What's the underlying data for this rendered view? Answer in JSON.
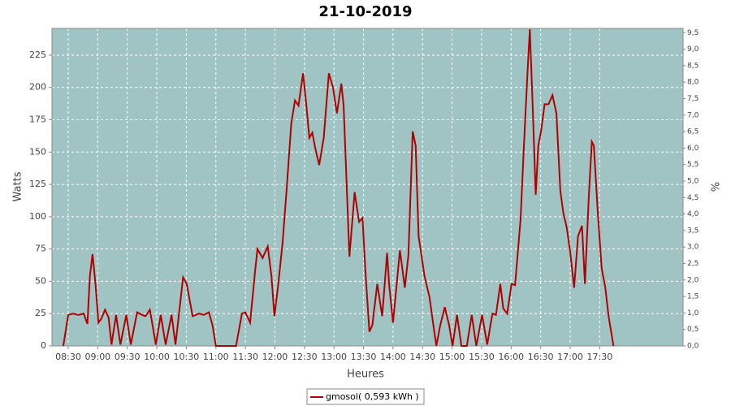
{
  "chart_data": {
    "type": "line",
    "title": "21-10-2019",
    "x_label": "Heures",
    "y_label": "Watts",
    "y2_label": "%",
    "grid": true,
    "legend": "bottom",
    "xlim": [
      493.5,
      1134.7
    ],
    "xticks": [
      {
        "value": 510,
        "label": "08:30"
      },
      {
        "value": 540,
        "label": "09:00"
      },
      {
        "value": 570,
        "label": "09:30"
      },
      {
        "value": 600,
        "label": "10:00"
      },
      {
        "value": 630,
        "label": "10:30"
      },
      {
        "value": 660,
        "label": "11:00"
      },
      {
        "value": 690,
        "label": "11:30"
      },
      {
        "value": 720,
        "label": "12:00"
      },
      {
        "value": 750,
        "label": "12:30"
      },
      {
        "value": 780,
        "label": "13:00"
      },
      {
        "value": 810,
        "label": "13:30"
      },
      {
        "value": 840,
        "label": "14:00"
      },
      {
        "value": 870,
        "label": "14:30"
      },
      {
        "value": 900,
        "label": "15:00"
      },
      {
        "value": 930,
        "label": "15:30"
      },
      {
        "value": 960,
        "label": "16:00"
      },
      {
        "value": 990,
        "label": "16:30"
      },
      {
        "value": 1020,
        "label": "17:00"
      },
      {
        "value": 1050,
        "label": "17:30"
      }
    ],
    "ylim": [
      0,
      245.7
    ],
    "yticks": [
      0,
      25,
      50,
      75,
      100,
      125,
      150,
      175,
      200,
      225
    ],
    "y2lim": [
      0,
      9.63
    ],
    "y2ticks": [
      {
        "value": 0,
        "label": "0,0"
      },
      {
        "value": 0.5,
        "label": "0,5"
      },
      {
        "value": 1,
        "label": "1,0"
      },
      {
        "value": 1.5,
        "label": "1,5"
      },
      {
        "value": 2,
        "label": "2,0"
      },
      {
        "value": 2.5,
        "label": "2,5"
      },
      {
        "value": 3,
        "label": "3,0"
      },
      {
        "value": 3.5,
        "label": "3,5"
      },
      {
        "value": 4,
        "label": "4,0"
      },
      {
        "value": 4.5,
        "label": "4,5"
      },
      {
        "value": 5,
        "label": "5,0"
      },
      {
        "value": 5.5,
        "label": "5,5"
      },
      {
        "value": 6,
        "label": "6,0"
      },
      {
        "value": 6.5,
        "label": "6,5"
      },
      {
        "value": 7,
        "label": "7,0"
      },
      {
        "value": 7.5,
        "label": "7,5"
      },
      {
        "value": 8,
        "label": "8,0"
      },
      {
        "value": 8.5,
        "label": "8,5"
      },
      {
        "value": 9,
        "label": "9,0"
      },
      {
        "value": 9.5,
        "label": "9,5"
      }
    ],
    "x": [
      505,
      510,
      515,
      520.5,
      525.7,
      529.5,
      532,
      534.7,
      537.7,
      540.7,
      543.6,
      547.4,
      551,
      554,
      558.6,
      563,
      569,
      573.6,
      580,
      585,
      588.5,
      593,
      599,
      604,
      609,
      615,
      619,
      626.7,
      630.4,
      636.4,
      643,
      647.6,
      652.9,
      656.6,
      660,
      670,
      680.5,
      686.5,
      690,
      694.8,
      700,
      702.3,
      707.5,
      712.7,
      716.5,
      719.5,
      723,
      727.7,
      732,
      736.6,
      740.4,
      744,
      748.6,
      751.6,
      755,
      758,
      761,
      765,
      769.6,
      774.8,
      779,
      783,
      787.5,
      789.8,
      792.7,
      795.7,
      801,
      805.5,
      809,
      812,
      816,
      819,
      824,
      829,
      834,
      836,
      840,
      847,
      852,
      855.6,
      860,
      863,
      866,
      872,
      877,
      881,
      884,
      888,
      892.6,
      897,
      900.5,
      905,
      909.5,
      915,
      920,
      924.6,
      930.5,
      935.7,
      941,
      944.6,
      949,
      952,
      956,
      960.4,
      964,
      969.6,
      973,
      977,
      979,
      981.6,
      985,
      987.6,
      990.6,
      994,
      998,
      1002,
      1006,
      1010,
      1013,
      1016.4,
      1020,
      1024,
      1028,
      1032,
      1035,
      1039,
      1042,
      1044,
      1048,
      1052,
      1055.7,
      1059,
      1064
    ],
    "series": [
      {
        "name": "gmosol( 0,593 kWh )",
        "color": "#b00000",
        "values": [
          0,
          24,
          25,
          24,
          25,
          17,
          54,
          71,
          48,
          18,
          21,
          28,
          22,
          1,
          24,
          1,
          24,
          1,
          26,
          24,
          23,
          28,
          1,
          24,
          1,
          24,
          1,
          53,
          48,
          23,
          25,
          24,
          26,
          16,
          0,
          0,
          0,
          25,
          26,
          18,
          59,
          75,
          68,
          77,
          54,
          23,
          45,
          79,
          122,
          172,
          190,
          186,
          211,
          189,
          161,
          165,
          153,
          140,
          161,
          211,
          200,
          180,
          203,
          186,
          129,
          69,
          119,
          96,
          99,
          57,
          11,
          16,
          48,
          23,
          72,
          48,
          18,
          74,
          45,
          70,
          166,
          155,
          85,
          54,
          38,
          16,
          0,
          16,
          30,
          16,
          0,
          24,
          0,
          0,
          24,
          0,
          24,
          1,
          25,
          24,
          48,
          29,
          25,
          48,
          47,
          98,
          155,
          217,
          245,
          192,
          117,
          155,
          167,
          187,
          187,
          194,
          180,
          120,
          103,
          92,
          73,
          45,
          85,
          93,
          48,
          117,
          158,
          155,
          104,
          60,
          45,
          23,
          0
        ]
      }
    ]
  }
}
